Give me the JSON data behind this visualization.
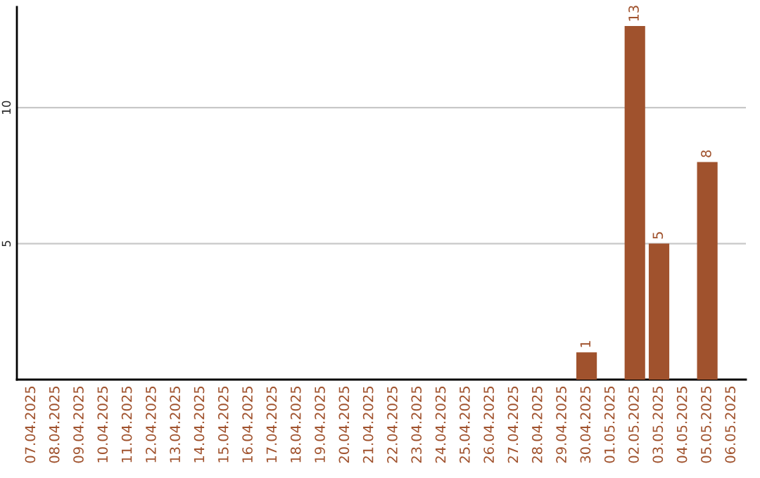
{
  "chart_data": {
    "type": "bar",
    "categories": [
      "07.04.2025",
      "08.04.2025",
      "09.04.2025",
      "10.04.2025",
      "11.04.2025",
      "12.04.2025",
      "13.04.2025",
      "14.04.2025",
      "15.04.2025",
      "16.04.2025",
      "17.04.2025",
      "18.04.2025",
      "19.04.2025",
      "20.04.2025",
      "21.04.2025",
      "22.04.2025",
      "23.04.2025",
      "24.04.2025",
      "25.04.2025",
      "26.04.2025",
      "27.04.2025",
      "28.04.2025",
      "29.04.2025",
      "30.04.2025",
      "01.05.2025",
      "02.05.2025",
      "03.05.2025",
      "04.05.2025",
      "05.05.2025",
      "06.05.2025"
    ],
    "values": [
      0,
      0,
      0,
      0,
      0,
      0,
      0,
      0,
      0,
      0,
      0,
      0,
      0,
      0,
      0,
      0,
      0,
      0,
      0,
      0,
      0,
      0,
      0,
      1,
      0,
      13,
      5,
      0,
      8,
      0
    ],
    "value_labels": [
      null,
      null,
      null,
      null,
      null,
      null,
      null,
      null,
      null,
      null,
      null,
      null,
      null,
      null,
      null,
      null,
      null,
      null,
      null,
      null,
      null,
      null,
      null,
      "1",
      null,
      "13",
      "5",
      null,
      "8",
      null
    ],
    "color": "#a0522d",
    "ylim": [
      0,
      13.7
    ],
    "yticks": [
      5,
      10
    ],
    "grid": "y",
    "legend": false
  }
}
